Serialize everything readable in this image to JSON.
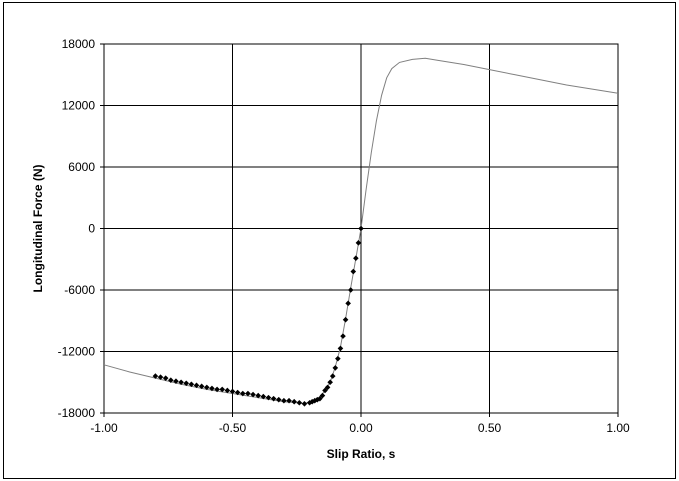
{
  "chart_data": {
    "type": "scatter",
    "title": "",
    "xlabel": "Slip Ratio, s",
    "ylabel": "Longitudinal Force (N)",
    "xlim": [
      -1.0,
      1.0
    ],
    "ylim": [
      -18000,
      18000
    ],
    "x_ticks": [
      "-1.00",
      "-0.50",
      "0.00",
      "0.50",
      "1.00"
    ],
    "y_ticks": [
      "18000",
      "12000",
      "6000",
      "0",
      "-6000",
      "-12000",
      "-18000"
    ],
    "grid": true,
    "legend": "none",
    "line_color": "#808080",
    "marker_color": "#000000",
    "series": [
      {
        "type": "line",
        "x": [
          -1.0,
          -0.9,
          -0.8,
          -0.7,
          -0.6,
          -0.5,
          -0.4,
          -0.3,
          -0.25,
          -0.22,
          -0.2,
          -0.18,
          -0.16,
          -0.14,
          -0.12,
          -0.1,
          -0.08,
          -0.06,
          -0.04,
          -0.02,
          0.0,
          0.02,
          0.04,
          0.06,
          0.08,
          0.1,
          0.12,
          0.15,
          0.2,
          0.25,
          0.3,
          0.4,
          0.5,
          0.6,
          0.7,
          0.8,
          0.9,
          1.0
        ],
        "y": [
          -13300,
          -14000,
          -14600,
          -15200,
          -15700,
          -16100,
          -16500,
          -16900,
          -17000,
          -17100,
          -16900,
          -16700,
          -16500,
          -15800,
          -15000,
          -13500,
          -11600,
          -8800,
          -5800,
          -2900,
          0,
          3800,
          7400,
          10500,
          13000,
          14700,
          15600,
          16200,
          16500,
          16600,
          16400,
          16000,
          15500,
          15000,
          14500,
          14000,
          13600,
          13200
        ]
      },
      {
        "type": "scatter",
        "x": [
          -0.8,
          -0.78,
          -0.76,
          -0.74,
          -0.72,
          -0.7,
          -0.68,
          -0.66,
          -0.64,
          -0.62,
          -0.6,
          -0.58,
          -0.56,
          -0.54,
          -0.52,
          -0.5,
          -0.48,
          -0.46,
          -0.44,
          -0.42,
          -0.4,
          -0.38,
          -0.36,
          -0.34,
          -0.32,
          -0.3,
          -0.28,
          -0.26,
          -0.24,
          -0.22,
          -0.2,
          -0.19,
          -0.18,
          -0.17,
          -0.16,
          -0.15,
          -0.14,
          -0.13,
          -0.12,
          -0.11,
          -0.1,
          -0.09,
          -0.08,
          -0.07,
          -0.06,
          -0.05,
          -0.04,
          -0.03,
          -0.02,
          -0.01,
          0.0
        ],
        "y": [
          -14400,
          -14500,
          -14600,
          -14800,
          -14900,
          -15000,
          -15100,
          -15200,
          -15300,
          -15400,
          -15500,
          -15600,
          -15700,
          -15700,
          -15800,
          -15900,
          -16000,
          -16100,
          -16100,
          -16200,
          -16300,
          -16400,
          -16500,
          -16600,
          -16700,
          -16800,
          -16800,
          -16900,
          -17000,
          -17100,
          -17000,
          -16900,
          -16800,
          -16700,
          -16600,
          -16300,
          -15800,
          -15500,
          -15000,
          -14400,
          -13600,
          -12700,
          -11700,
          -10500,
          -8900,
          -7300,
          -6000,
          -4200,
          -2900,
          -1400,
          0
        ]
      }
    ]
  }
}
